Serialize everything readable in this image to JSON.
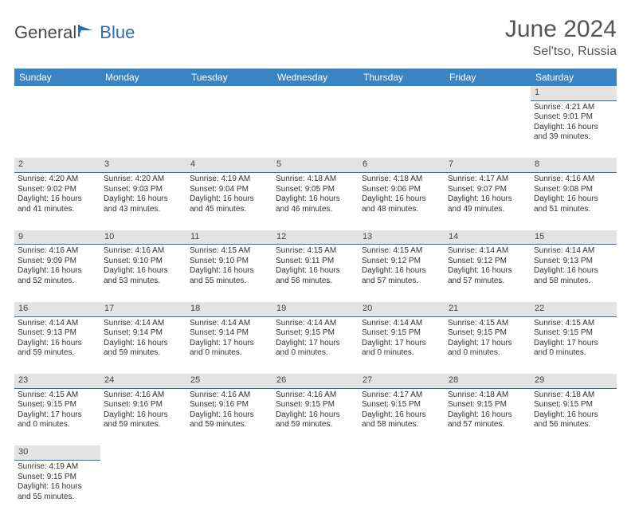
{
  "brand": {
    "general": "General",
    "blue": "Blue"
  },
  "title": "June 2024",
  "location": "Sel'tso, Russia",
  "daysOfWeek": [
    "Sunday",
    "Monday",
    "Tuesday",
    "Wednesday",
    "Thursday",
    "Friday",
    "Saturday"
  ],
  "colors": {
    "headerBg": "#3b84c4",
    "dayNumBg": "#e3e3e3",
    "dayNumBorder": "#2f6fa8",
    "logoBlue": "#2c6cb0",
    "textGray": "#555555"
  },
  "weeks": [
    {
      "nums": [
        "",
        "",
        "",
        "",
        "",
        "",
        "1"
      ],
      "cells": [
        null,
        null,
        null,
        null,
        null,
        null,
        {
          "sunrise": "4:21 AM",
          "sunset": "9:01 PM",
          "daylight": "16 hours and 39 minutes."
        }
      ]
    },
    {
      "nums": [
        "2",
        "3",
        "4",
        "5",
        "6",
        "7",
        "8"
      ],
      "cells": [
        {
          "sunrise": "4:20 AM",
          "sunset": "9:02 PM",
          "daylight": "16 hours and 41 minutes."
        },
        {
          "sunrise": "4:20 AM",
          "sunset": "9:03 PM",
          "daylight": "16 hours and 43 minutes."
        },
        {
          "sunrise": "4:19 AM",
          "sunset": "9:04 PM",
          "daylight": "16 hours and 45 minutes."
        },
        {
          "sunrise": "4:18 AM",
          "sunset": "9:05 PM",
          "daylight": "16 hours and 46 minutes."
        },
        {
          "sunrise": "4:18 AM",
          "sunset": "9:06 PM",
          "daylight": "16 hours and 48 minutes."
        },
        {
          "sunrise": "4:17 AM",
          "sunset": "9:07 PM",
          "daylight": "16 hours and 49 minutes."
        },
        {
          "sunrise": "4:16 AM",
          "sunset": "9:08 PM",
          "daylight": "16 hours and 51 minutes."
        }
      ]
    },
    {
      "nums": [
        "9",
        "10",
        "11",
        "12",
        "13",
        "14",
        "15"
      ],
      "cells": [
        {
          "sunrise": "4:16 AM",
          "sunset": "9:09 PM",
          "daylight": "16 hours and 52 minutes."
        },
        {
          "sunrise": "4:16 AM",
          "sunset": "9:10 PM",
          "daylight": "16 hours and 53 minutes."
        },
        {
          "sunrise": "4:15 AM",
          "sunset": "9:10 PM",
          "daylight": "16 hours and 55 minutes."
        },
        {
          "sunrise": "4:15 AM",
          "sunset": "9:11 PM",
          "daylight": "16 hours and 56 minutes."
        },
        {
          "sunrise": "4:15 AM",
          "sunset": "9:12 PM",
          "daylight": "16 hours and 57 minutes."
        },
        {
          "sunrise": "4:14 AM",
          "sunset": "9:12 PM",
          "daylight": "16 hours and 57 minutes."
        },
        {
          "sunrise": "4:14 AM",
          "sunset": "9:13 PM",
          "daylight": "16 hours and 58 minutes."
        }
      ]
    },
    {
      "nums": [
        "16",
        "17",
        "18",
        "19",
        "20",
        "21",
        "22"
      ],
      "cells": [
        {
          "sunrise": "4:14 AM",
          "sunset": "9:13 PM",
          "daylight": "16 hours and 59 minutes."
        },
        {
          "sunrise": "4:14 AM",
          "sunset": "9:14 PM",
          "daylight": "16 hours and 59 minutes."
        },
        {
          "sunrise": "4:14 AM",
          "sunset": "9:14 PM",
          "daylight": "17 hours and 0 minutes."
        },
        {
          "sunrise": "4:14 AM",
          "sunset": "9:15 PM",
          "daylight": "17 hours and 0 minutes."
        },
        {
          "sunrise": "4:14 AM",
          "sunset": "9:15 PM",
          "daylight": "17 hours and 0 minutes."
        },
        {
          "sunrise": "4:15 AM",
          "sunset": "9:15 PM",
          "daylight": "17 hours and 0 minutes."
        },
        {
          "sunrise": "4:15 AM",
          "sunset": "9:15 PM",
          "daylight": "17 hours and 0 minutes."
        }
      ]
    },
    {
      "nums": [
        "23",
        "24",
        "25",
        "26",
        "27",
        "28",
        "29"
      ],
      "cells": [
        {
          "sunrise": "4:15 AM",
          "sunset": "9:15 PM",
          "daylight": "17 hours and 0 minutes."
        },
        {
          "sunrise": "4:16 AM",
          "sunset": "9:16 PM",
          "daylight": "16 hours and 59 minutes."
        },
        {
          "sunrise": "4:16 AM",
          "sunset": "9:16 PM",
          "daylight": "16 hours and 59 minutes."
        },
        {
          "sunrise": "4:16 AM",
          "sunset": "9:15 PM",
          "daylight": "16 hours and 59 minutes."
        },
        {
          "sunrise": "4:17 AM",
          "sunset": "9:15 PM",
          "daylight": "16 hours and 58 minutes."
        },
        {
          "sunrise": "4:18 AM",
          "sunset": "9:15 PM",
          "daylight": "16 hours and 57 minutes."
        },
        {
          "sunrise": "4:18 AM",
          "sunset": "9:15 PM",
          "daylight": "16 hours and 56 minutes."
        }
      ]
    },
    {
      "nums": [
        "30",
        "",
        "",
        "",
        "",
        "",
        ""
      ],
      "cells": [
        {
          "sunrise": "4:19 AM",
          "sunset": "9:15 PM",
          "daylight": "16 hours and 55 minutes."
        },
        null,
        null,
        null,
        null,
        null,
        null
      ]
    }
  ],
  "labels": {
    "sunrise": "Sunrise:",
    "sunset": "Sunset:",
    "daylight": "Daylight:"
  }
}
